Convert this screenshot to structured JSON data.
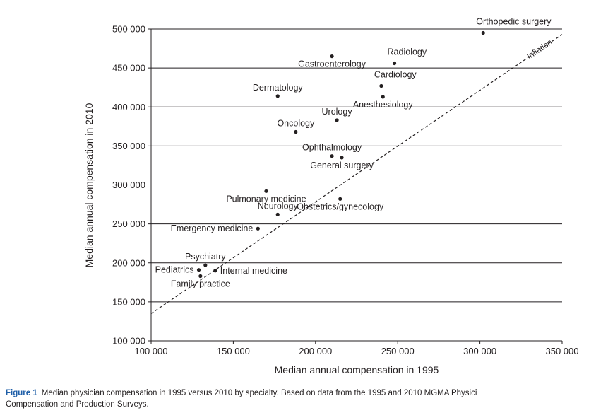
{
  "chart_data": {
    "type": "scatter",
    "xlabel": "Median annual compensation in 1995",
    "ylabel": "Median annual compensation in 2010",
    "xlim": [
      100000,
      350000
    ],
    "ylim": [
      100000,
      500000
    ],
    "x_ticks": [
      {
        "value": 100000,
        "label": "100 000"
      },
      {
        "value": 150000,
        "label": "150 000"
      },
      {
        "value": 200000,
        "label": "200 000"
      },
      {
        "value": 250000,
        "label": "250 000"
      },
      {
        "value": 300000,
        "label": "300 000"
      },
      {
        "value": 350000,
        "label": "350 000"
      }
    ],
    "y_ticks": [
      {
        "value": 100000,
        "label": "100 000"
      },
      {
        "value": 150000,
        "label": "150 000"
      },
      {
        "value": 200000,
        "label": "200 000"
      },
      {
        "value": 250000,
        "label": "250 000"
      },
      {
        "value": 300000,
        "label": "300 000"
      },
      {
        "value": 350000,
        "label": "350 000"
      },
      {
        "value": 400000,
        "label": "400 000"
      },
      {
        "value": 450000,
        "label": "450 000"
      },
      {
        "value": 500000,
        "label": "500 000"
      }
    ],
    "grid": "horizontal",
    "points": [
      {
        "label": "Orthopedic surgery",
        "x": 302000,
        "y": 495000,
        "pos": "ne"
      },
      {
        "label": "Radiology",
        "x": 248000,
        "y": 456000,
        "pos": "ne"
      },
      {
        "label": "Gastroenterology",
        "x": 210000,
        "y": 465000,
        "pos": "s"
      },
      {
        "label": "Cardiology",
        "x": 240000,
        "y": 427000,
        "pos": "ne"
      },
      {
        "label": "Dermatology",
        "x": 177000,
        "y": 414000,
        "pos": "n"
      },
      {
        "label": "Anesthesiology",
        "x": 241000,
        "y": 413000,
        "pos": "s"
      },
      {
        "label": "Urology",
        "x": 213000,
        "y": 383000,
        "pos": "n"
      },
      {
        "label": "Oncology",
        "x": 188000,
        "y": 368000,
        "pos": "n"
      },
      {
        "label": "Ophthalmology",
        "x": 210000,
        "y": 337000,
        "pos": "n"
      },
      {
        "label": "General surgery",
        "x": 216000,
        "y": 335000,
        "pos": "s"
      },
      {
        "label": "Pulmonary medicine",
        "x": 170000,
        "y": 292000,
        "pos": "s"
      },
      {
        "label": "Obstetrics/gynecology",
        "x": 215000,
        "y": 282000,
        "pos": "s"
      },
      {
        "label": "Neurology",
        "x": 177000,
        "y": 262000,
        "pos": "n"
      },
      {
        "label": "Emergency medicine",
        "x": 165000,
        "y": 244000,
        "pos": "w"
      },
      {
        "label": "Psychiatry",
        "x": 133000,
        "y": 197000,
        "pos": "n"
      },
      {
        "label": "Pediatrics",
        "x": 129000,
        "y": 191000,
        "pos": "w"
      },
      {
        "label": "Internal medicine",
        "x": 139000,
        "y": 190000,
        "pos": "e"
      },
      {
        "label": "Family practice",
        "x": 130000,
        "y": 183000,
        "pos": "s"
      }
    ],
    "reference_line": {
      "label": "Inflation",
      "from": [
        100000,
        135000
      ],
      "to": [
        350000,
        493000
      ],
      "style": "dashed"
    }
  },
  "caption": {
    "label": "Figure 1",
    "line1": "Median physician compensation in 1995 versus 2010 by specialty. Based on data from the 1995 and 2010 MGMA Physici",
    "line2": "Compensation and Production Surveys."
  }
}
